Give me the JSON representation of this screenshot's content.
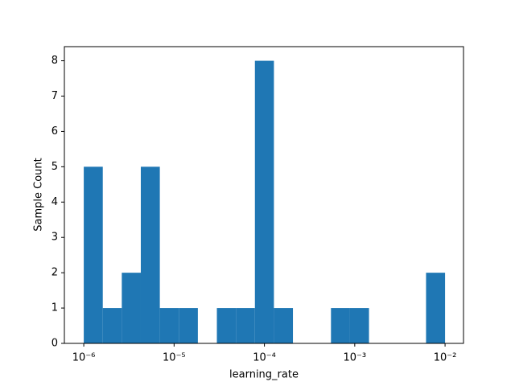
{
  "chart_data": {
    "type": "histogram",
    "x_label": "learning_rate",
    "y_label": "Sample Count",
    "bins": [
      1e-06,
      1.6238e-06,
      2.6367e-06,
      4.2813e-06,
      6.9519e-06,
      1.1288e-05,
      1.833e-05,
      2.9764e-05,
      4.8329e-05,
      7.8476e-05,
      0.00012743,
      0.00020691,
      0.00033598,
      0.00054556,
      0.00088587,
      0.0014384,
      0.0023357,
      0.0037927,
      0.0061585,
      0.01
    ],
    "counts": [
      5,
      1,
      2,
      5,
      1,
      1,
      0,
      1,
      1,
      8,
      1,
      0,
      0,
      1,
      1,
      0,
      0,
      0,
      2
    ],
    "color": "#1f77b4",
    "xscale": "log",
    "xlim": [
      6.1e-07,
      0.016
    ],
    "xticks": [
      {
        "value": 1e-06,
        "label": "10⁻⁶"
      },
      {
        "value": 1e-05,
        "label": "10⁻⁵"
      },
      {
        "value": 0.0001,
        "label": "10⁻⁴"
      },
      {
        "value": 0.001,
        "label": "10⁻³"
      },
      {
        "value": 0.01,
        "label": "10⁻²"
      }
    ],
    "ylim": [
      0,
      8.4
    ],
    "yticks": [
      0,
      1,
      2,
      3,
      4,
      5,
      6,
      7,
      8
    ]
  }
}
